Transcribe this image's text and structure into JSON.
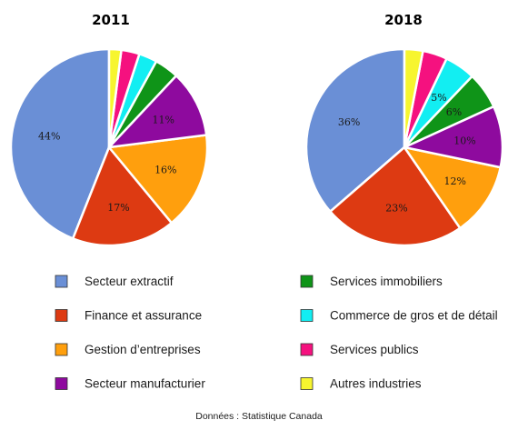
{
  "chart_data": [
    {
      "type": "pie",
      "title": "2011",
      "slices": [
        {
          "category": "Secteur extractif",
          "value": 44,
          "label": "44%"
        },
        {
          "category": "Finance et assurance",
          "value": 17,
          "label": "17%"
        },
        {
          "category": "Gestion d’entreprises",
          "value": 16,
          "label": "16%"
        },
        {
          "category": "Secteur manufacturier",
          "value": 11,
          "label": "11%"
        },
        {
          "category": "Services immobiliers",
          "value": 4,
          "label": ""
        },
        {
          "category": "Commerce de gros et de détail",
          "value": 3,
          "label": ""
        },
        {
          "category": "Services publics",
          "value": 3,
          "label": ""
        },
        {
          "category": "Autres industries",
          "value": 2,
          "label": ""
        }
      ]
    },
    {
      "type": "pie",
      "title": "2018",
      "slices": [
        {
          "category": "Secteur extractif",
          "value": 36,
          "label": "36%"
        },
        {
          "category": "Finance et assurance",
          "value": 23,
          "label": "23%"
        },
        {
          "category": "Gestion d’entreprises",
          "value": 12,
          "label": "12%"
        },
        {
          "category": "Secteur manufacturier",
          "value": 10,
          "label": "10%"
        },
        {
          "category": "Services immobiliers",
          "value": 6,
          "label": "6%"
        },
        {
          "category": "Commerce de gros et de détail",
          "value": 5,
          "label": "5%"
        },
        {
          "category": "Services publics",
          "value": 4,
          "label": ""
        },
        {
          "category": "Autres industries",
          "value": 3,
          "label": ""
        }
      ]
    }
  ],
  "legend": [
    {
      "label": "Secteur extractif",
      "color": "#6a8fd6"
    },
    {
      "label": "Finance et assurance",
      "color": "#dd3a12"
    },
    {
      "label": "Gestion d’entreprises",
      "color": "#ff9f0d"
    },
    {
      "label": "Secteur manufacturier",
      "color": "#8e0a9e"
    },
    {
      "label": "Services immobiliers",
      "color": "#0f9418"
    },
    {
      "label": "Commerce de gros et de détail",
      "color": "#12eef2"
    },
    {
      "label": "Services publics",
      "color": "#f5117f"
    },
    {
      "label": "Autres industries",
      "color": "#f7f52f"
    }
  ],
  "source": "Données : Statistique Canada",
  "start_angle_deg": 0,
  "direction": "clockwise",
  "legend_position": "bottom"
}
